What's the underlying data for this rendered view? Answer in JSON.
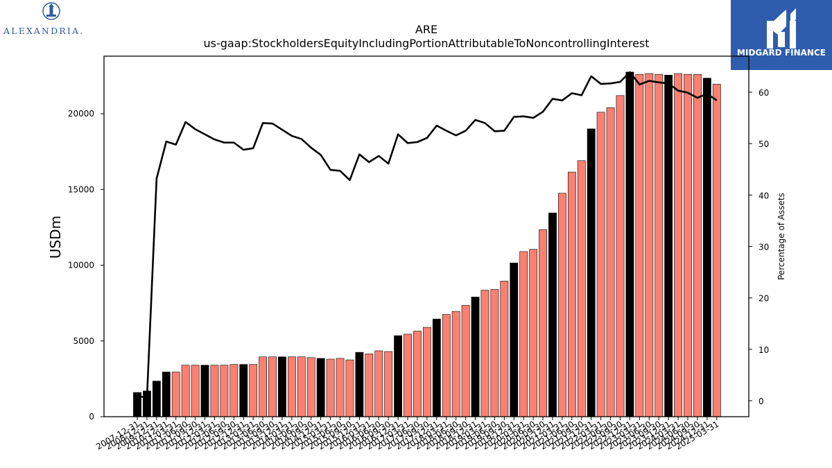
{
  "brand": {
    "left_logo_text": "ALEXANDRIA.",
    "right_logo_text": "MIDGARD FINANCE"
  },
  "colors": {
    "bar_annual": "#000000",
    "bar_quarter": "#fa8072",
    "line": "#000000",
    "right_logo_bg": "#2f5dae"
  },
  "chart_data": {
    "type": "bar",
    "title": "ARE",
    "subtitle": "us-gaap:StockholdersEquityIncludingPortionAttributableToNoncontrollingInterest",
    "ylabel": "USDm",
    "y2label": "Percentage of Assets",
    "ylim": [
      0,
      23800
    ],
    "y2lim": [
      -3.1,
      67
    ],
    "yticks": [
      "0",
      "5000",
      "10000",
      "15000",
      "20000"
    ],
    "y2ticks": [
      "0",
      "10",
      "20",
      "30",
      "40",
      "50",
      "60"
    ],
    "categories": [
      "2007-12-31",
      "2008-12-31",
      "2009-12-31",
      "2010-12-31",
      "2011-03-31",
      "2011-06-30",
      "2011-09-30",
      "2011-12-31",
      "2012-03-31",
      "2012-06-30",
      "2012-09-30",
      "2012-12-31",
      "2013-03-31",
      "2013-06-30",
      "2013-09-30",
      "2013-12-31",
      "2014-03-31",
      "2014-06-30",
      "2014-09-30",
      "2014-12-31",
      "2015-03-31",
      "2015-06-30",
      "2015-09-30",
      "2015-12-31",
      "2016-03-31",
      "2016-06-30",
      "2016-09-30",
      "2016-12-31",
      "2017-03-31",
      "2017-06-30",
      "2017-09-30",
      "2017-12-31",
      "2018-03-31",
      "2018-06-30",
      "2018-09-30",
      "2018-12-31",
      "2019-03-31",
      "2019-06-30",
      "2019-09-30",
      "2019-12-31",
      "2020-03-31",
      "2020-06-30",
      "2020-09-30",
      "2020-12-31",
      "2021-03-31",
      "2021-06-30",
      "2021-09-30",
      "2021-12-31",
      "2022-03-31",
      "2022-06-30",
      "2022-09-30",
      "2022-12-31",
      "2023-03-31",
      "2023-06-30",
      "2023-09-30",
      "2023-12-31",
      "2024-03-31",
      "2024-06-30",
      "2024-09-30",
      "2024-12-31",
      "2025-03-31"
    ],
    "xtick_labels": [
      "2007-12-31",
      "2008-12-31",
      "2009-12-31",
      "2010-12-31",
      "2011-03-31",
      "2011-06-30",
      "2011-09-30",
      "2011-12-31",
      "2012-03-31",
      "2012-06-30",
      "2012-09-30",
      "2012-12-31",
      "2013-03-31",
      "2013-06-30",
      "2013-09-30",
      "2013-12-31",
      "2014-03-31",
      "2014-06-30",
      "2014-09-30",
      "2014-12-31",
      "2015-03-31",
      "2015-06-30",
      "2015-09-30",
      "2015-12-31",
      "2016-03-31",
      "2016-06-30",
      "2016-09-30",
      "2016-12-31",
      "2017-03-31",
      "2017-06-30",
      "2017-09-30",
      "2017-12-31",
      "2018-03-31",
      "2018-06-30",
      "2018-09-30",
      "2018-12-31",
      "2019-03-31",
      "2019-06-30",
      "2019-09-30",
      "2019-12-31",
      "2020-03-31",
      "2020-06-30",
      "2020-09-30",
      "2020-12-31",
      "2021-03-31",
      "2021-06-30",
      "2021-09-30",
      "2021-12-31",
      "2022-03-31",
      "2022-06-30",
      "2022-09-30",
      "2022-12-31",
      "2023-03-31",
      "2023-06-30",
      "2023-09-30",
      "2023-12-31",
      "2024-03-31",
      "2024-06-30",
      "2024-09-30",
      "2024-12-31",
      "2025-03-31"
    ],
    "values": [
      1600,
      1700,
      2350,
      2950,
      2950,
      3400,
      3400,
      3400,
      3400,
      3400,
      3450,
      3450,
      3450,
      3950,
      3950,
      3950,
      3950,
      3950,
      3900,
      3850,
      3800,
      3850,
      3750,
      4250,
      4150,
      4350,
      4300,
      5350,
      5450,
      5650,
      5900,
      6450,
      6750,
      6950,
      7350,
      7900,
      8350,
      8400,
      8950,
      10150,
      10900,
      11050,
      12350,
      13450,
      14750,
      16150,
      16900,
      19000,
      20100,
      20400,
      21200,
      22750,
      22600,
      22650,
      22600,
      22550,
      22650,
      22600,
      22600,
      22350,
      21950
    ],
    "annual_flags": [
      1,
      1,
      1,
      1,
      0,
      0,
      0,
      1,
      0,
      0,
      0,
      1,
      0,
      0,
      0,
      1,
      0,
      0,
      0,
      1,
      0,
      0,
      0,
      1,
      0,
      0,
      0,
      1,
      0,
      0,
      0,
      1,
      0,
      0,
      0,
      1,
      0,
      0,
      0,
      1,
      0,
      0,
      0,
      1,
      0,
      0,
      0,
      1,
      0,
      0,
      0,
      1,
      0,
      0,
      0,
      1,
      0,
      0,
      0,
      1,
      0
    ],
    "line_values": [
      1.0,
      0.5,
      43.2,
      50.4,
      49.8,
      54.2,
      52.8,
      51.8,
      50.8,
      50.2,
      50.2,
      48.8,
      49.1,
      54.0,
      53.9,
      52.7,
      51.5,
      50.9,
      49.2,
      47.8,
      44.9,
      44.7,
      42.9,
      47.9,
      46.4,
      47.6,
      46.1,
      51.8,
      50.1,
      50.3,
      51.1,
      53.5,
      52.5,
      51.6,
      52.5,
      54.6,
      54.0,
      52.4,
      52.5,
      55.2,
      55.3,
      55.0,
      56.2,
      58.7,
      58.4,
      59.8,
      59.4,
      63.1,
      61.6,
      61.7,
      62.0,
      63.9,
      61.5,
      62.2,
      61.9,
      61.7,
      60.3,
      59.9,
      58.9,
      59.7,
      58.4
    ]
  }
}
